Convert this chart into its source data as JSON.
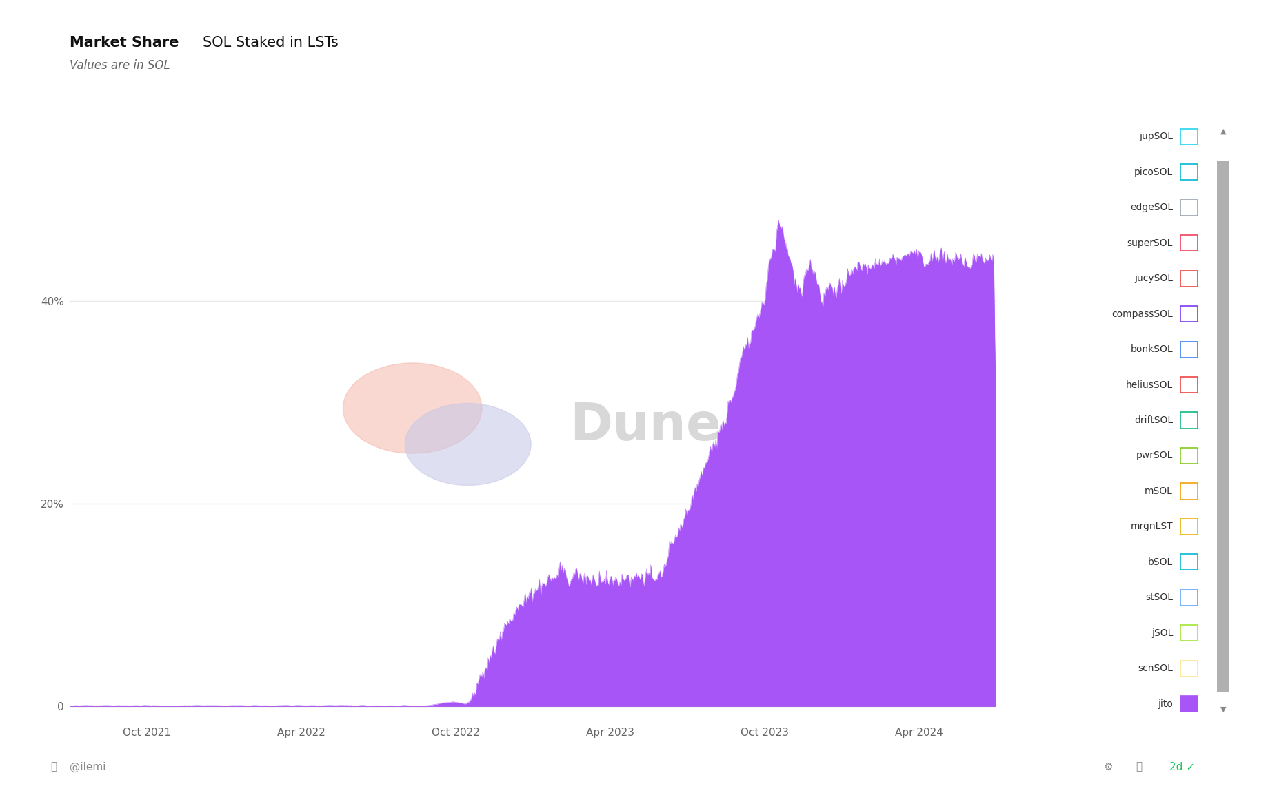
{
  "title_bold": "Market Share",
  "title_normal": "SOL Staked in LSTs",
  "subtitle": "Values are in SOL",
  "bg_color": "#ffffff",
  "plot_bg_color": "#ffffff",
  "area_color": "#a855f7",
  "grid_color": "#e8e8e8",
  "ytick_labels": [
    "0",
    "20%",
    "40%"
  ],
  "xtick_labels": [
    "Oct 2021",
    "Apr 2022",
    "Oct 2022",
    "Apr 2023",
    "Oct 2023",
    "Apr 2024"
  ],
  "legend_items": [
    {
      "label": "jupSOL",
      "color": "#22d3ee",
      "filled": false
    },
    {
      "label": "picoSOL",
      "color": "#06b6d4",
      "filled": false
    },
    {
      "label": "edgeSOL",
      "color": "#9ca3af",
      "filled": false
    },
    {
      "label": "superSOL",
      "color": "#f43f5e",
      "filled": false
    },
    {
      "label": "jucySOL",
      "color": "#ef4444",
      "filled": false
    },
    {
      "label": "compassSOL",
      "color": "#7c3aed",
      "filled": false
    },
    {
      "label": "bonkSOL",
      "color": "#3b82f6",
      "filled": false
    },
    {
      "label": "heliusSOL",
      "color": "#ef4444",
      "filled": false
    },
    {
      "label": "driftSOL",
      "color": "#10b981",
      "filled": false
    },
    {
      "label": "pwrSOL",
      "color": "#84cc16",
      "filled": false
    },
    {
      "label": "mSOL",
      "color": "#f59e0b",
      "filled": false
    },
    {
      "label": "mrgnLST",
      "color": "#eab308",
      "filled": false
    },
    {
      "label": "bSOL",
      "color": "#06b6d4",
      "filled": false
    },
    {
      "label": "stSOL",
      "color": "#60a5fa",
      "filled": false
    },
    {
      "label": "jSOL",
      "color": "#a3e635",
      "filled": false
    },
    {
      "label": "scnSOL",
      "color": "#fde68a",
      "filled": false
    },
    {
      "label": "jito",
      "color": "#a855f7",
      "filled": true
    }
  ],
  "watermark_text": "Dune",
  "footer_text": "@ilemi",
  "scroll_bg": "#e5e7eb",
  "scroll_thumb": "#b0b0b0"
}
